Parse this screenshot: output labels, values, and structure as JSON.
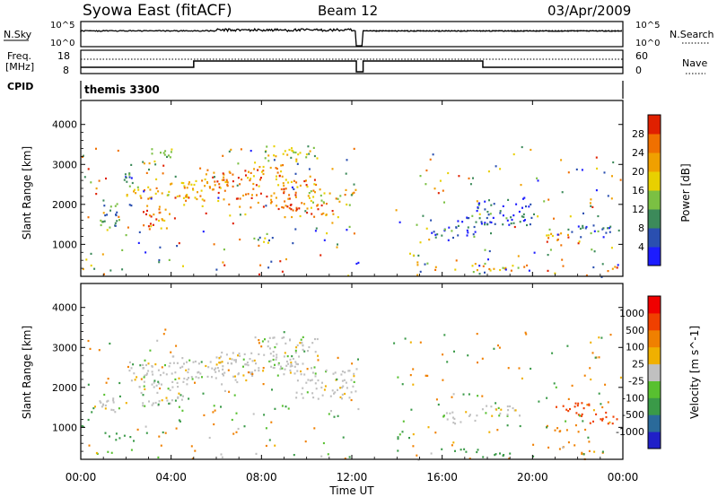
{
  "header": {
    "title": "Syowa East (fitACF)",
    "beam": "Beam 12",
    "date": "03/Apr/2009"
  },
  "top_panels": {
    "nsky_label": "N.Sky",
    "nsky_ticks": [
      "10^5",
      "10^0"
    ],
    "nsearch_label": "N.Search",
    "nsearch_ticks": [
      "10^5",
      "10^0"
    ],
    "freq_label_line1": "Freq.",
    "freq_label_line2": "[MHz]",
    "freq_ticks": [
      "18",
      "8"
    ],
    "nave_label": "Nave",
    "nave_ticks": [
      "60",
      "0"
    ],
    "cpid_label": "CPID",
    "cpid_value": "themis 3300"
  },
  "colors": {
    "power": [
      "#1c1cff",
      "#2a4fb0",
      "#3c8a5a",
      "#7bc043",
      "#e8d000",
      "#f0a000",
      "#f07000",
      "#e02000"
    ],
    "velocity": [
      "#2020c8",
      "#2a6a9a",
      "#3a9a48",
      "#58c030",
      "#c0c0c0",
      "#f0b000",
      "#f08000",
      "#f04000",
      "#f00000"
    ]
  },
  "chart_data": [
    {
      "type": "heatmap",
      "name": "power-panel",
      "ylabel": "Slant Range [km]",
      "yticks": [
        "1000",
        "2000",
        "3000",
        "4000"
      ],
      "ylim": [
        200,
        4600
      ],
      "xlim": [
        0,
        24
      ],
      "colorbar_label": "Power [dB]",
      "colorbar_ticks": [
        "4",
        "8",
        "12",
        "16",
        "20",
        "24",
        "28"
      ],
      "colorbar_range": [
        0,
        30
      ],
      "echo_regions": [
        {
          "t0": 0.3,
          "t1": 1.8,
          "r0": 350,
          "r1": 420,
          "value": 6
        },
        {
          "t0": 0.6,
          "t1": 1.7,
          "r0": 1400,
          "r1": 1900,
          "value": 9
        },
        {
          "t0": 1.0,
          "t1": 2.2,
          "r0": 1950,
          "r1": 2100,
          "value": 10
        },
        {
          "t0": 1.4,
          "t1": 2.3,
          "r0": 2500,
          "r1": 2800,
          "value": 9
        },
        {
          "t0": 2.0,
          "t1": 3.6,
          "r0": 2150,
          "r1": 2500,
          "value": 18
        },
        {
          "t0": 2.6,
          "t1": 3.8,
          "r0": 1400,
          "r1": 2200,
          "value": 22
        },
        {
          "t0": 3.5,
          "t1": 5.0,
          "r0": 2200,
          "r1": 2600,
          "value": 19
        },
        {
          "t0": 3.0,
          "t1": 4.0,
          "r0": 3000,
          "r1": 3500,
          "value": 14
        },
        {
          "t0": 4.5,
          "t1": 6.5,
          "r0": 2100,
          "r1": 2700,
          "value": 21
        },
        {
          "t0": 5.5,
          "t1": 8.0,
          "r0": 2400,
          "r1": 2900,
          "value": 24
        },
        {
          "t0": 6.5,
          "t1": 9.5,
          "r0": 1900,
          "r1": 2300,
          "value": 23
        },
        {
          "t0": 7.5,
          "t1": 9.0,
          "r0": 2700,
          "r1": 3100,
          "value": 20
        },
        {
          "t0": 8.5,
          "t1": 10.5,
          "r0": 2300,
          "r1": 2700,
          "value": 22
        },
        {
          "t0": 9.0,
          "t1": 11.5,
          "r0": 1700,
          "r1": 2100,
          "value": 24
        },
        {
          "t0": 10.0,
          "t1": 12.2,
          "r0": 2000,
          "r1": 2400,
          "value": 18
        },
        {
          "t0": 7.5,
          "t1": 8.5,
          "r0": 1000,
          "r1": 1300,
          "value": 10
        },
        {
          "t0": 8.0,
          "t1": 10.5,
          "r0": 3100,
          "r1": 3500,
          "value": 15
        },
        {
          "t0": 14.0,
          "t1": 15.0,
          "r0": 700,
          "r1": 800,
          "value": 14
        },
        {
          "t0": 14.8,
          "t1": 15.4,
          "r0": 500,
          "r1": 600,
          "value": 12
        },
        {
          "t0": 15.5,
          "t1": 17.5,
          "r0": 1100,
          "r1": 1500,
          "value": 7
        },
        {
          "t0": 16.5,
          "t1": 18.5,
          "r0": 1500,
          "r1": 1700,
          "value": 5
        },
        {
          "t0": 17.5,
          "t1": 20.0,
          "r0": 1500,
          "r1": 2200,
          "value": 6
        },
        {
          "t0": 17.0,
          "t1": 19.8,
          "r0": 350,
          "r1": 550,
          "value": 18
        },
        {
          "t0": 20.5,
          "t1": 22.0,
          "r0": 1000,
          "r1": 1300,
          "value": 23
        },
        {
          "t0": 21.5,
          "t1": 23.8,
          "r0": 1200,
          "r1": 1500,
          "value": 7
        },
        {
          "t0": 22.8,
          "t1": 23.9,
          "r0": 350,
          "r1": 450,
          "value": 22
        }
      ]
    },
    {
      "type": "heatmap",
      "name": "velocity-panel",
      "ylabel": "Slant Range [km]",
      "yticks": [
        "1000",
        "2000",
        "3000",
        "4000"
      ],
      "ylim": [
        200,
        4600
      ],
      "xlim": [
        0,
        24
      ],
      "xlabel": "Time UT",
      "xticks": [
        "00:00",
        "04:00",
        "08:00",
        "12:00",
        "16:00",
        "20:00",
        "00:00"
      ],
      "colorbar_label": "Velocity [m s^-1]",
      "colorbar_ticks": [
        "1000",
        "500",
        "100",
        "25",
        "-25",
        "-100",
        "-500",
        "-1000"
      ],
      "echo_regions": [
        {
          "t0": 0.3,
          "t1": 1.8,
          "r0": 350,
          "r1": 420,
          "value": 50
        },
        {
          "t0": 0.6,
          "t1": 1.7,
          "r0": 1400,
          "r1": 1900,
          "value": 0
        },
        {
          "t0": 1.0,
          "t1": 2.2,
          "r0": 700,
          "r1": 900,
          "value": 120
        },
        {
          "t0": 2.0,
          "t1": 4.0,
          "r0": 2100,
          "r1": 2700,
          "value": 0
        },
        {
          "t0": 2.5,
          "t1": 4.5,
          "r0": 1500,
          "r1": 2100,
          "value": 0
        },
        {
          "t0": 4.0,
          "t1": 7.0,
          "r0": 2100,
          "r1": 2800,
          "value": 0
        },
        {
          "t0": 6.0,
          "t1": 9.5,
          "r0": 2300,
          "r1": 2900,
          "value": 0
        },
        {
          "t0": 8.0,
          "t1": 10.5,
          "r0": 2500,
          "r1": 3300,
          "value": 0
        },
        {
          "t0": 9.5,
          "t1": 12.2,
          "r0": 1700,
          "r1": 2500,
          "value": 0
        },
        {
          "t0": 14.0,
          "t1": 15.0,
          "r0": 700,
          "r1": 800,
          "value": 120
        },
        {
          "t0": 16.5,
          "t1": 18.0,
          "r0": 350,
          "r1": 500,
          "value": 200
        },
        {
          "t0": 18.0,
          "t1": 19.8,
          "r0": 300,
          "r1": 420,
          "value": 150
        },
        {
          "t0": 17.5,
          "t1": 19.5,
          "r0": 1300,
          "r1": 1600,
          "value": 0
        },
        {
          "t0": 15.8,
          "t1": 17.5,
          "r0": 1100,
          "r1": 1400,
          "value": 0
        },
        {
          "t0": 20.5,
          "t1": 22.0,
          "r0": 900,
          "r1": 1100,
          "value": -200
        },
        {
          "t0": 21.0,
          "t1": 22.5,
          "r0": 1300,
          "r1": 1700,
          "value": -600
        },
        {
          "t0": 22.5,
          "t1": 23.9,
          "r0": 1100,
          "r1": 1400,
          "value": -900
        },
        {
          "t0": 22.0,
          "t1": 23.9,
          "r0": 350,
          "r1": 450,
          "value": -200
        }
      ]
    }
  ]
}
